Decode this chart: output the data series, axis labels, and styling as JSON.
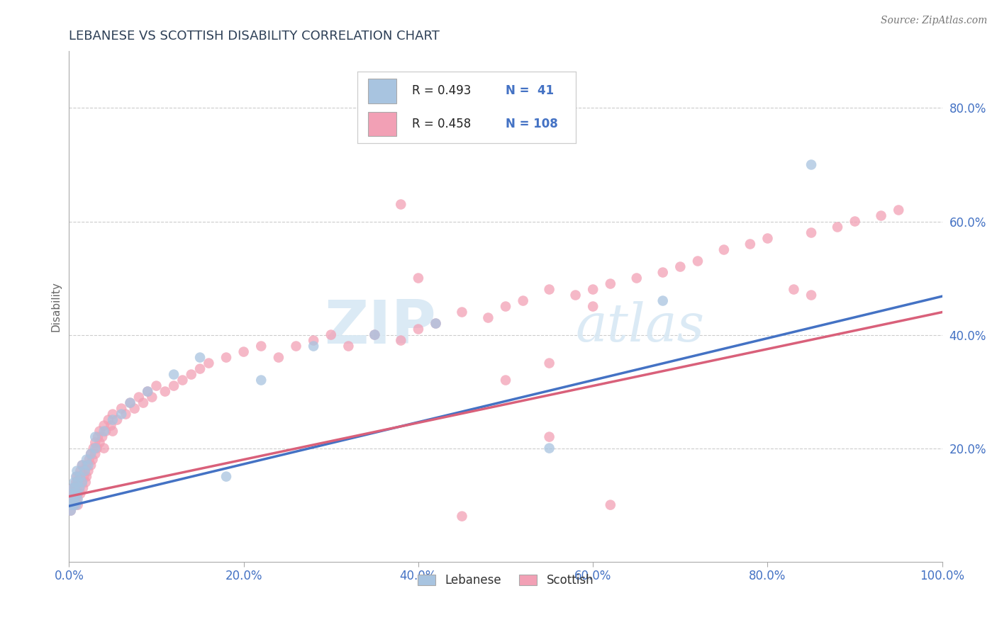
{
  "title": "LEBANESE VS SCOTTISH DISABILITY CORRELATION CHART",
  "source": "Source: ZipAtlas.com",
  "ylabel": "Disability",
  "xlim": [
    0.0,
    1.0
  ],
  "ylim": [
    0.0,
    0.9
  ],
  "x_ticks": [
    0.0,
    0.2,
    0.4,
    0.6,
    0.8,
    1.0
  ],
  "x_tick_labels": [
    "0.0%",
    "20.0%",
    "40.0%",
    "60.0%",
    "80.0%",
    "100.0%"
  ],
  "y_ticks": [
    0.2,
    0.4,
    0.6,
    0.8
  ],
  "y_tick_labels": [
    "20.0%",
    "40.0%",
    "60.0%",
    "80.0%"
  ],
  "lebanese_color": "#a8c4e0",
  "scottish_color": "#f2a0b5",
  "line_lebanese_color": "#4472c4",
  "line_scottish_color": "#d9607a",
  "R_lebanese": 0.493,
  "N_lebanese": 41,
  "R_scottish": 0.458,
  "N_scottish": 108,
  "title_color": "#2e4057",
  "tick_color": "#4472c4",
  "background_color": "#ffffff",
  "leb_intercept": 0.098,
  "leb_slope": 0.37,
  "sco_intercept": 0.115,
  "sco_slope": 0.325,
  "lebanese_x": [
    0.002,
    0.003,
    0.004,
    0.004,
    0.005,
    0.005,
    0.006,
    0.006,
    0.007,
    0.007,
    0.008,
    0.008,
    0.009,
    0.009,
    0.01,
    0.01,
    0.012,
    0.013,
    0.015,
    0.015,
    0.018,
    0.02,
    0.022,
    0.025,
    0.03,
    0.03,
    0.04,
    0.05,
    0.06,
    0.07,
    0.09,
    0.12,
    0.15,
    0.18,
    0.22,
    0.28,
    0.35,
    0.42,
    0.55,
    0.68,
    0.85
  ],
  "lebanese_y": [
    0.09,
    0.1,
    0.11,
    0.12,
    0.1,
    0.13,
    0.11,
    0.14,
    0.12,
    0.13,
    0.1,
    0.15,
    0.12,
    0.16,
    0.11,
    0.14,
    0.13,
    0.15,
    0.14,
    0.17,
    0.16,
    0.18,
    0.17,
    0.19,
    0.2,
    0.22,
    0.23,
    0.25,
    0.26,
    0.28,
    0.3,
    0.33,
    0.36,
    0.15,
    0.32,
    0.38,
    0.4,
    0.42,
    0.2,
    0.46,
    0.7
  ],
  "scottish_x": [
    0.002,
    0.003,
    0.003,
    0.004,
    0.004,
    0.005,
    0.005,
    0.006,
    0.006,
    0.007,
    0.007,
    0.008,
    0.008,
    0.009,
    0.009,
    0.01,
    0.01,
    0.01,
    0.012,
    0.012,
    0.013,
    0.013,
    0.015,
    0.015,
    0.016,
    0.017,
    0.018,
    0.019,
    0.02,
    0.02,
    0.022,
    0.023,
    0.025,
    0.025,
    0.027,
    0.028,
    0.03,
    0.03,
    0.032,
    0.033,
    0.035,
    0.035,
    0.038,
    0.04,
    0.04,
    0.042,
    0.045,
    0.048,
    0.05,
    0.05,
    0.055,
    0.06,
    0.065,
    0.07,
    0.075,
    0.08,
    0.085,
    0.09,
    0.095,
    0.1,
    0.11,
    0.12,
    0.13,
    0.14,
    0.15,
    0.16,
    0.18,
    0.2,
    0.22,
    0.24,
    0.26,
    0.28,
    0.3,
    0.32,
    0.35,
    0.38,
    0.4,
    0.42,
    0.45,
    0.48,
    0.5,
    0.52,
    0.55,
    0.55,
    0.58,
    0.6,
    0.62,
    0.65,
    0.68,
    0.7,
    0.72,
    0.75,
    0.78,
    0.8,
    0.83,
    0.85,
    0.88,
    0.9,
    0.93,
    0.95,
    0.5,
    0.55,
    0.6,
    0.62,
    0.38,
    0.4,
    0.45,
    0.85
  ],
  "scottish_y": [
    0.09,
    0.1,
    0.11,
    0.1,
    0.12,
    0.11,
    0.13,
    0.1,
    0.12,
    0.11,
    0.13,
    0.12,
    0.14,
    0.11,
    0.15,
    0.1,
    0.12,
    0.14,
    0.13,
    0.15,
    0.12,
    0.16,
    0.14,
    0.17,
    0.13,
    0.15,
    0.16,
    0.14,
    0.15,
    0.17,
    0.16,
    0.18,
    0.17,
    0.19,
    0.18,
    0.2,
    0.19,
    0.21,
    0.2,
    0.22,
    0.21,
    0.23,
    0.22,
    0.2,
    0.24,
    0.23,
    0.25,
    0.24,
    0.23,
    0.26,
    0.25,
    0.27,
    0.26,
    0.28,
    0.27,
    0.29,
    0.28,
    0.3,
    0.29,
    0.31,
    0.3,
    0.31,
    0.32,
    0.33,
    0.34,
    0.35,
    0.36,
    0.37,
    0.38,
    0.36,
    0.38,
    0.39,
    0.4,
    0.38,
    0.4,
    0.39,
    0.41,
    0.42,
    0.44,
    0.43,
    0.45,
    0.46,
    0.22,
    0.48,
    0.47,
    0.48,
    0.49,
    0.5,
    0.51,
    0.52,
    0.53,
    0.55,
    0.56,
    0.57,
    0.48,
    0.58,
    0.59,
    0.6,
    0.61,
    0.62,
    0.32,
    0.35,
    0.45,
    0.1,
    0.63,
    0.5,
    0.08,
    0.47
  ]
}
